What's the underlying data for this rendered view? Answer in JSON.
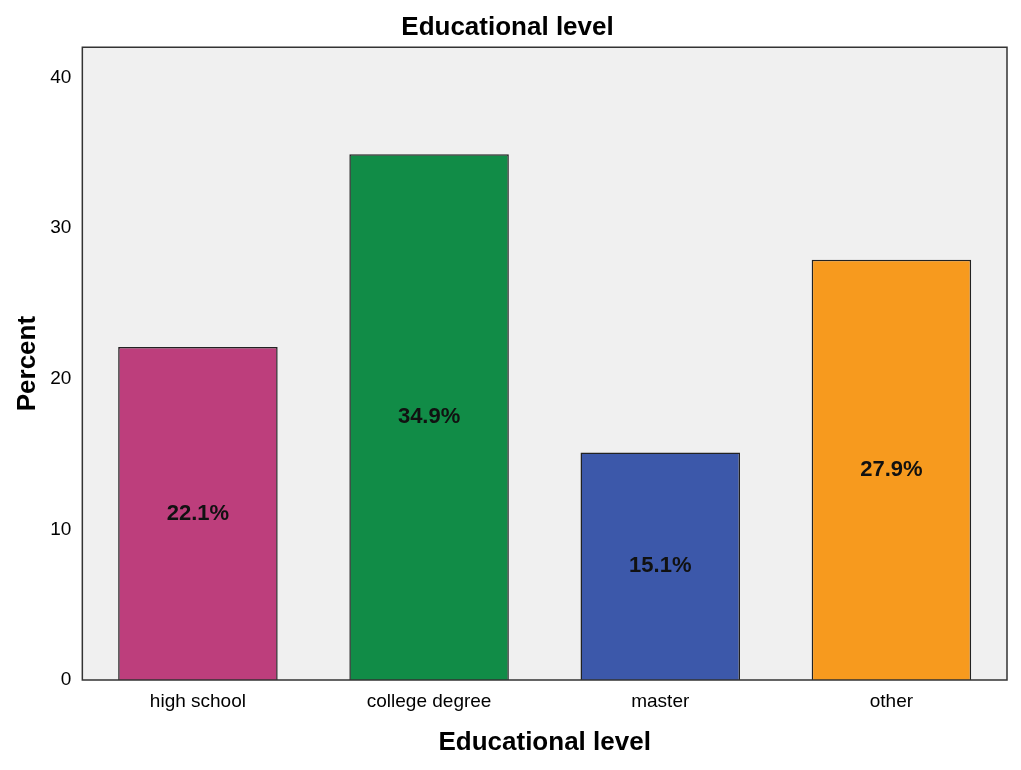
{
  "chart_data": {
    "type": "bar",
    "title": "Educational level",
    "xlabel": "Educational level",
    "ylabel": "Percent",
    "categories": [
      "high school",
      "college degree",
      "master",
      "other"
    ],
    "values": [
      22.1,
      34.9,
      15.1,
      27.9
    ],
    "colors": [
      "#bd3e7c",
      "#118c47",
      "#3c58aa",
      "#f79a1e"
    ],
    "value_labels": [
      "22.1%",
      "34.9%",
      "15.1%",
      "27.9%"
    ],
    "ylim": [
      0,
      42
    ],
    "yticks": [
      0,
      10,
      20,
      30,
      40
    ],
    "grid": false,
    "legend": false
  }
}
